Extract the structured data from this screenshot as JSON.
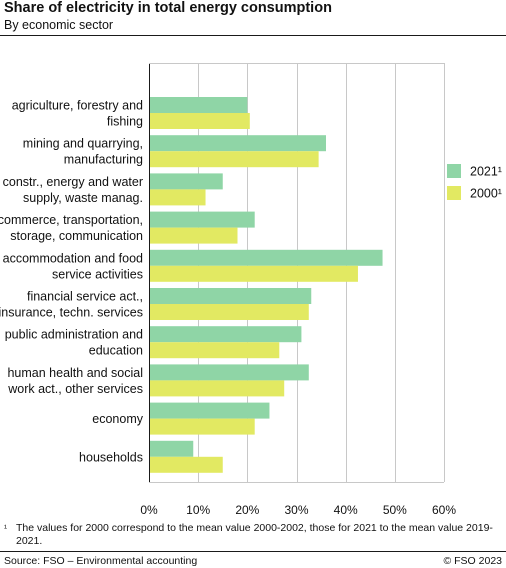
{
  "header": {
    "title": "Share of electricity in total energy consumption",
    "subtitle": "By economic sector"
  },
  "chart_data": {
    "type": "bar",
    "orientation": "horizontal",
    "categories": [
      [
        "agriculture, forestry and",
        "fishing"
      ],
      [
        "mining and quarrying,",
        "manufacturing"
      ],
      [
        "constr., energy and water",
        "supply, waste manag."
      ],
      [
        "commerce, transportation,",
        "storage, communication"
      ],
      [
        "accommodation and food",
        "service activities"
      ],
      [
        "financial service act.,",
        "insurance, techn. services"
      ],
      [
        "public administration and",
        "education"
      ],
      [
        "human health and social",
        "work act., other services"
      ],
      [
        "economy"
      ],
      [
        "households"
      ]
    ],
    "series": [
      {
        "name": "2021¹",
        "color": "#8fd5a6",
        "values": [
          20,
          36,
          15,
          21.5,
          47.5,
          33,
          31,
          32.5,
          24.5,
          9
        ]
      },
      {
        "name": "2000¹",
        "color": "#e2e962",
        "values": [
          20.5,
          34.5,
          11.5,
          18,
          42.5,
          32.5,
          26.5,
          27.5,
          21.5,
          15
        ]
      }
    ],
    "xlim": [
      0,
      60
    ],
    "xticks": [
      0,
      10,
      20,
      30,
      40,
      50,
      60
    ],
    "tick_suffix": "%",
    "grid": true,
    "legend_position": "right"
  },
  "footnote": {
    "mark": "¹",
    "text": "The values for 2000 correspond to the mean value 2000-2002, those for 2021 to the mean value 2019-2021."
  },
  "footer": {
    "source": "Source: FSO – Environmental accounting",
    "credit": "© FSO 2023"
  }
}
